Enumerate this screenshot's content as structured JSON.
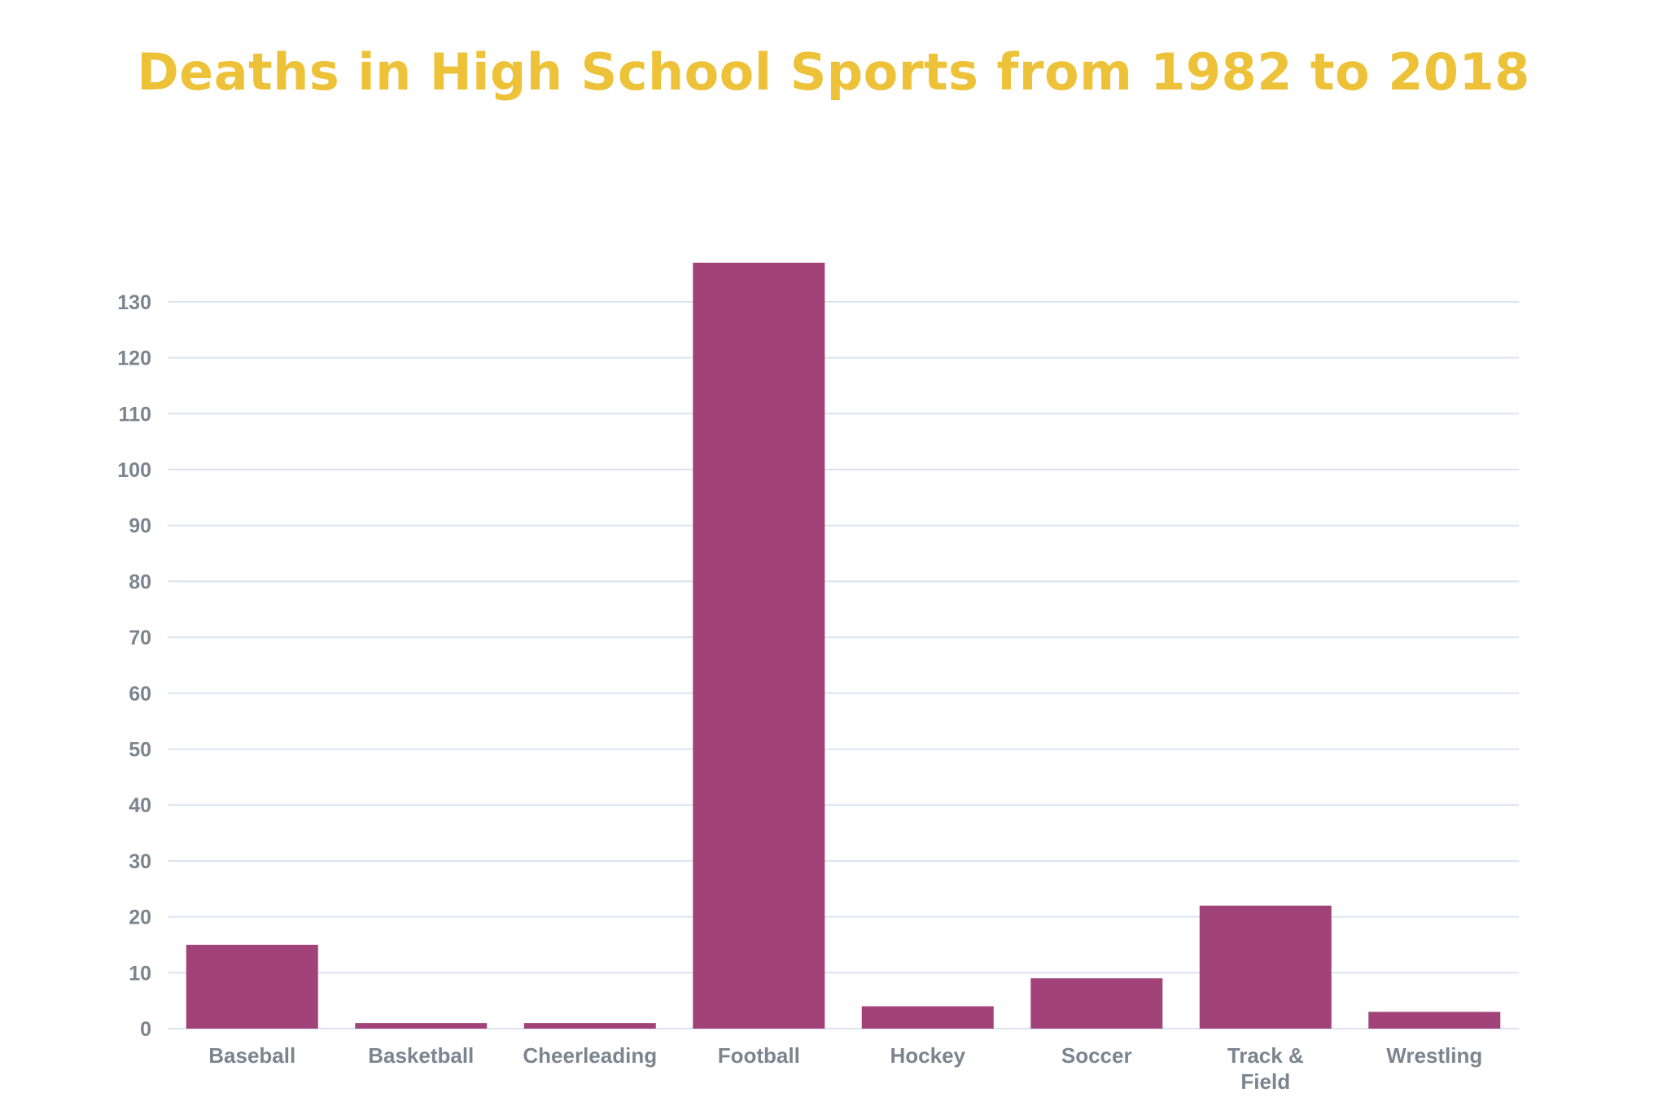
{
  "colors": {
    "title": "#edc239",
    "bar": "#a14379",
    "grid": "#dbe4ee",
    "label": "#7c858d"
  },
  "chart_data": {
    "type": "bar",
    "title": "Deaths in High School Sports from 1982 to 2018",
    "xlabel": "",
    "ylabel": "",
    "categories": [
      "Baseball",
      "Basketball",
      "Cheerleading",
      "Football",
      "Hockey",
      "Soccer",
      "Track & Field",
      "Wrestling"
    ],
    "category_label_lines": [
      [
        "Baseball"
      ],
      [
        "Basketball"
      ],
      [
        "Cheerleading"
      ],
      [
        "Football"
      ],
      [
        "Hockey"
      ],
      [
        "Soccer"
      ],
      [
        "Track &",
        "Field"
      ],
      [
        "Wrestling"
      ]
    ],
    "values": [
      15,
      1,
      1,
      137,
      4,
      9,
      22,
      3
    ],
    "ylim": [
      0,
      137
    ],
    "yticks": [
      0,
      10,
      20,
      30,
      40,
      50,
      60,
      70,
      80,
      90,
      100,
      110,
      120,
      130
    ],
    "grid": true,
    "legend": "none"
  }
}
